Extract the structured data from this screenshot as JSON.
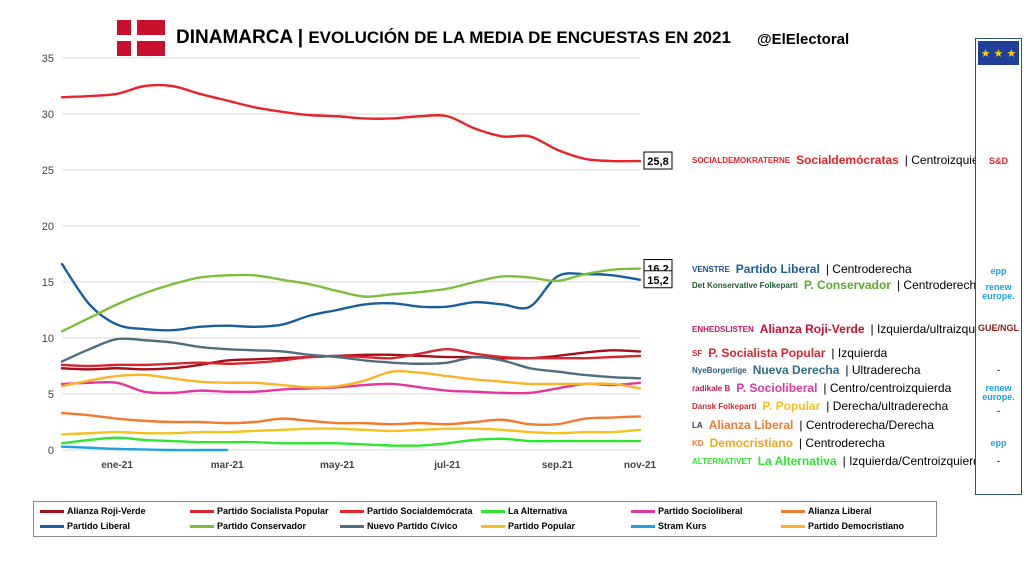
{
  "header": {
    "country": "DINAMARCA",
    "separator": "|",
    "subtitle": "EVOLUCIÓN DE LA MEDIA DE ENCUESTAS EN 2021",
    "handle": "@ElElectoral"
  },
  "colors": {
    "flag_red": "#C8102E",
    "panel_border": "#2c4f8c",
    "eu_blue": "#1e3f9a"
  },
  "chart_data": {
    "type": "line",
    "title": "EVOLUCIÓN DE LA MEDIA DE ENCUESTAS EN 2021",
    "ylim": [
      0,
      35
    ],
    "yticks": [
      0,
      5,
      10,
      15,
      20,
      25,
      30,
      35
    ],
    "xlim": [
      1,
      11.5
    ],
    "xticks": [
      {
        "label": "ene-21",
        "x": 2
      },
      {
        "label": "mar-21",
        "x": 4
      },
      {
        "label": "may-21",
        "x": 6
      },
      {
        "label": "jul-21",
        "x": 8
      },
      {
        "label": "sep.21",
        "x": 10
      },
      {
        "label": "nov-21",
        "x": 11.5
      }
    ],
    "grid": "horizontal",
    "legend_position": "bottom",
    "x": [
      1,
      1.5,
      2,
      2.5,
      3,
      3.5,
      4,
      4.5,
      5,
      5.5,
      6,
      6.5,
      7,
      7.5,
      8,
      8.5,
      9,
      9.5,
      10,
      10.5,
      11,
      11.5
    ],
    "series": [
      {
        "name": "Alianza Roji-Verde",
        "color": "#A50F1A",
        "values": [
          7.3,
          7.2,
          7.3,
          7.2,
          7.3,
          7.6,
          8.0,
          8.1,
          8.2,
          8.3,
          8.4,
          8.5,
          8.5,
          8.4,
          8.3,
          8.3,
          8.2,
          8.2,
          8.4,
          8.7,
          8.9,
          8.8
        ]
      },
      {
        "name": "Partido Socialista Popular",
        "color": "#D7262E",
        "values": [
          7.6,
          7.5,
          7.6,
          7.6,
          7.7,
          7.8,
          7.7,
          7.8,
          8.0,
          8.3,
          8.4,
          8.3,
          8.2,
          8.6,
          9.0,
          8.6,
          8.3,
          8.2,
          8.2,
          8.2,
          8.3,
          8.4
        ]
      },
      {
        "name": "Partido Socialdemócrata",
        "color": "#E8232A",
        "values": [
          31.5,
          31.6,
          31.8,
          32.5,
          32.5,
          31.8,
          31.2,
          30.6,
          30.2,
          29.9,
          29.8,
          29.6,
          29.6,
          29.8,
          29.8,
          28.7,
          28.0,
          28.0,
          26.8,
          26.0,
          25.8,
          25.8
        ]
      },
      {
        "name": "La Alternativa",
        "color": "#2EE62E",
        "values": [
          0.6,
          0.9,
          1.1,
          0.9,
          0.8,
          0.7,
          0.7,
          0.7,
          0.6,
          0.6,
          0.6,
          0.5,
          0.4,
          0.4,
          0.6,
          0.9,
          1.0,
          0.8,
          0.8,
          0.8,
          0.8,
          0.8
        ]
      },
      {
        "name": "Partido Socioliberal",
        "color": "#E3379E",
        "values": [
          5.9,
          6.0,
          6.0,
          5.2,
          5.1,
          5.3,
          5.2,
          5.2,
          5.4,
          5.5,
          5.6,
          5.8,
          5.9,
          5.6,
          5.3,
          5.2,
          5.1,
          5.1,
          5.5,
          5.9,
          5.8,
          6.0
        ]
      },
      {
        "name": "Alianza Liberal",
        "color": "#F07A2D",
        "values": [
          3.3,
          3.1,
          2.8,
          2.6,
          2.5,
          2.5,
          2.4,
          2.5,
          2.8,
          2.6,
          2.4,
          2.4,
          2.3,
          2.4,
          2.3,
          2.5,
          2.7,
          2.3,
          2.3,
          2.8,
          2.9,
          3.0
        ]
      },
      {
        "name": "Partido Liberal",
        "color": "#1B5E9B",
        "values": [
          16.6,
          13.0,
          11.2,
          10.8,
          10.7,
          11.0,
          11.1,
          11.0,
          11.2,
          12.0,
          12.5,
          13.0,
          13.1,
          12.8,
          12.8,
          13.2,
          13.0,
          12.8,
          15.5,
          15.7,
          15.6,
          15.2
        ]
      },
      {
        "name": "Partido Conservador",
        "color": "#7DBE3A",
        "values": [
          10.6,
          11.8,
          13.0,
          14.0,
          14.8,
          15.4,
          15.6,
          15.6,
          15.2,
          14.8,
          14.2,
          13.7,
          13.9,
          14.1,
          14.4,
          15.0,
          15.5,
          15.4,
          15.1,
          15.7,
          16.1,
          16.2
        ]
      },
      {
        "name": "Nuevo Partido Cívico",
        "color": "#4E6E7E",
        "values": [
          7.9,
          9.0,
          9.9,
          9.8,
          9.6,
          9.2,
          9.0,
          8.9,
          8.8,
          8.5,
          8.3,
          8.0,
          7.8,
          7.7,
          7.8,
          8.3,
          8.0,
          7.3,
          7.0,
          6.7,
          6.5,
          6.4
        ]
      },
      {
        "name": "Partido Popular",
        "color": "#F5C21F",
        "values": [
          1.4,
          1.5,
          1.6,
          1.5,
          1.5,
          1.6,
          1.6,
          1.7,
          1.8,
          1.9,
          1.9,
          1.8,
          1.7,
          1.8,
          1.9,
          1.9,
          1.8,
          1.6,
          1.5,
          1.6,
          1.6,
          1.8
        ]
      },
      {
        "name": "Stram Kurs",
        "color": "#1CA3E6",
        "values": [
          0.3,
          0.2,
          0.1,
          0.05,
          0.0,
          0.0,
          0.0,
          null,
          null,
          null,
          null,
          null,
          null,
          null,
          null,
          null,
          null,
          null,
          null,
          null,
          null,
          null
        ]
      },
      {
        "name": "Partido Democristiano",
        "color": "#F7B529",
        "values": [
          5.7,
          6.2,
          6.6,
          6.7,
          6.4,
          6.1,
          6.0,
          6.0,
          5.8,
          5.6,
          5.7,
          6.2,
          7.0,
          6.9,
          6.6,
          6.3,
          6.1,
          5.9,
          5.9,
          5.9,
          5.9,
          5.5
        ]
      }
    ],
    "callouts": [
      {
        "text": "25,8",
        "series": "Partido Socialdemócrata",
        "value": 25.8
      },
      {
        "text": "16,2",
        "series": "Partido Conservador",
        "value": 16.2
      },
      {
        "text": "15,2",
        "series": "Partido Liberal",
        "value": 15.2
      }
    ]
  },
  "legend": [
    {
      "label": "Alianza Roji-Verde",
      "color": "#A50F1A"
    },
    {
      "label": "Partido Socialista Popular",
      "color": "#D7262E"
    },
    {
      "label": "Partido Socialdemócrata",
      "color": "#E8232A"
    },
    {
      "label": "La Alternativa",
      "color": "#2EE62E"
    },
    {
      "label": "Partido Socioliberal",
      "color": "#E3379E"
    },
    {
      "label": "Alianza Liberal",
      "color": "#F07A2D"
    },
    {
      "label": "Partido Liberal",
      "color": "#1B5E9B"
    },
    {
      "label": "Partido Conservador",
      "color": "#7DBE3A"
    },
    {
      "label": "Nuevo Partido Cívico",
      "color": "#4E6E7E"
    },
    {
      "label": "Partido Popular",
      "color": "#F5C21F"
    },
    {
      "label": "Stram Kurs",
      "color": "#1CA3E6"
    },
    {
      "label": "Partido Democristiano",
      "color": "#F7B529"
    }
  ],
  "parties": [
    {
      "logo": "SOCIALDEMOKRATERNE",
      "logo_color": "#E8232A",
      "name": "Socialdemócratas",
      "color": "#E8232A",
      "ideology": "| Centroizquierda"
    },
    {
      "logo": "VENSTRE",
      "logo_color": "#1B4F8C",
      "name": "Partido Liberal",
      "color": "#1B5E9B",
      "ideology": "| Centroderecha"
    },
    {
      "logo": "Det Konservative Folkeparti",
      "logo_color": "#1f5b35",
      "name": "P. Conservador",
      "color": "#5FA82E",
      "ideology": "| Centroderecha"
    },
    {
      "logo": "ENHEDSLISTEN",
      "logo_color": "#C2185B",
      "name": "Alianza Roji-Verde",
      "color": "#C8102E",
      "ideology": "| Izquierda/ultraizquierda"
    },
    {
      "logo": "SF",
      "logo_color": "#D7262E",
      "name": "P. Socialista Popular",
      "color": "#D7262E",
      "ideology": "| Izquierda"
    },
    {
      "logo": "NyeBorgerlige",
      "logo_color": "#2F5E74",
      "name": "Nueva Derecha",
      "color": "#2F6E86",
      "ideology": "| Ultraderecha"
    },
    {
      "logo": "radikale B",
      "logo_color": "#C2185B",
      "name": "P. Socioliberal",
      "color": "#E3379E",
      "ideology": "| Centro/centroizquierda"
    },
    {
      "logo": "Dansk Folkeparti",
      "logo_color": "#D7262E",
      "name": "P. Popular",
      "color": "#F5C21F",
      "ideology": "| Derecha/ultraderecha"
    },
    {
      "logo": "LA",
      "logo_color": "#2c3e50",
      "name": "Alianza Liberal",
      "color": "#F07A2D",
      "ideology": "| Centroderecha/Derecha"
    },
    {
      "logo": "KD",
      "logo_color": "#F07A2D",
      "name": "Democristiano",
      "color": "#F7A21B",
      "ideology": "| Centroderecha"
    },
    {
      "logo": "ALTERNATIVET",
      "logo_color": "#2EE62E",
      "name": "La Alternativa",
      "color": "#2EE62E",
      "ideology": "| Izquierda/Centroizquierda"
    }
  ],
  "eu_groups": [
    {
      "label": "S&D",
      "color": "#E8232A"
    },
    {
      "label": "epp",
      "color": "#1CA3E6"
    },
    {
      "label": "renew europe.",
      "color": "#1CA3E6"
    },
    {
      "label": "GUE/NGL",
      "color": "#8B1A1A"
    },
    {
      "label": "-",
      "color": "#333333"
    },
    {
      "label": "renew europe.",
      "color": "#1CA3E6"
    },
    {
      "label": "-",
      "color": "#333333"
    },
    {
      "label": "epp",
      "color": "#1CA3E6"
    },
    {
      "label": "-",
      "color": "#333333"
    }
  ]
}
